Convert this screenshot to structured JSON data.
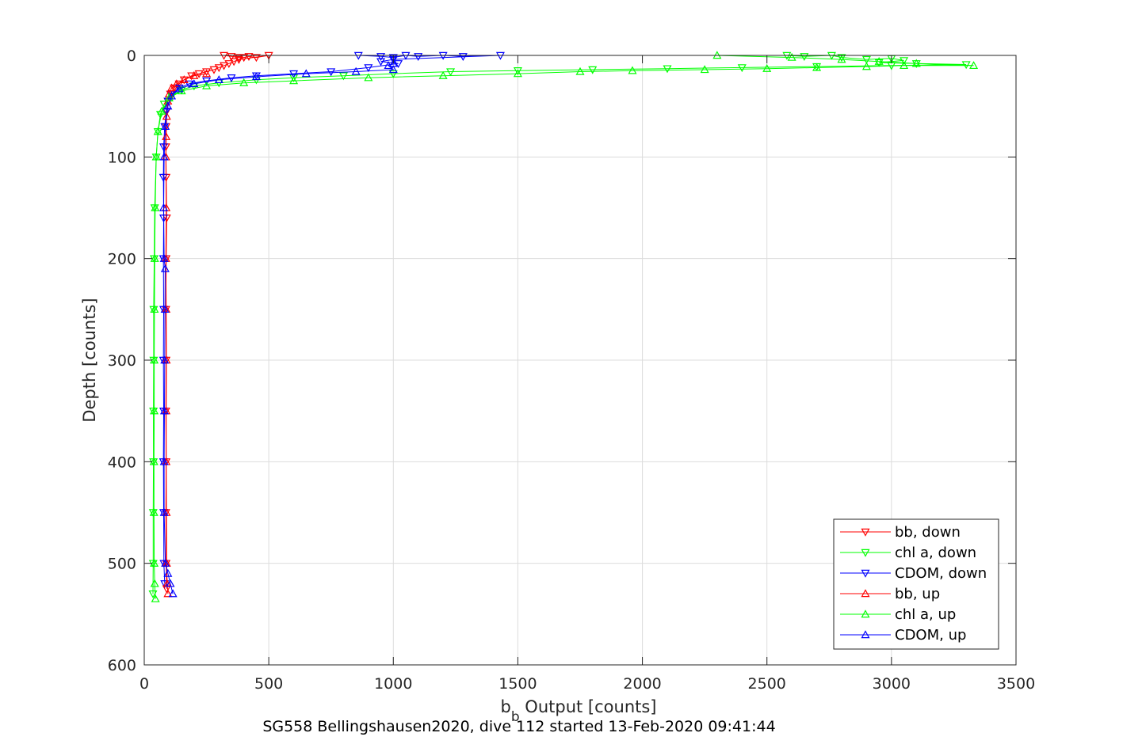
{
  "chart_data": {
    "type": "line",
    "xlabel_main": "b",
    "xlabel_sub": "b",
    "xlabel_rest": " Output [counts]",
    "ylabel": "Depth [counts]",
    "subtitle": "SG558 Bellingshausen2020, dive 112 started 13-Feb-2020 09:41:44",
    "xlim": [
      0,
      3500
    ],
    "ylim": [
      0,
      600
    ],
    "y_reversed": true,
    "xticks": [
      0,
      500,
      1000,
      1500,
      2000,
      2500,
      3000,
      3500
    ],
    "yticks": [
      0,
      100,
      200,
      300,
      400,
      500,
      600
    ],
    "grid": true,
    "legend_position": "bottom-right",
    "series": [
      {
        "name": "bb, down",
        "color": "#ff0000",
        "marker": "triangle-down",
        "points": [
          [
            320,
            0
          ],
          [
            350,
            1
          ],
          [
            380,
            2
          ],
          [
            400,
            2
          ],
          [
            420,
            1
          ],
          [
            450,
            2
          ],
          [
            500,
            0
          ],
          [
            380,
            4
          ],
          [
            360,
            6
          ],
          [
            340,
            8
          ],
          [
            320,
            10
          ],
          [
            300,
            12
          ],
          [
            280,
            14
          ],
          [
            250,
            16
          ],
          [
            220,
            18
          ],
          [
            190,
            20
          ],
          [
            160,
            24
          ],
          [
            140,
            28
          ],
          [
            120,
            32
          ],
          [
            105,
            38
          ],
          [
            95,
            45
          ],
          [
            90,
            55
          ],
          [
            88,
            70
          ],
          [
            87,
            90
          ],
          [
            88,
            120
          ],
          [
            90,
            160
          ],
          [
            88,
            200
          ],
          [
            87,
            250
          ],
          [
            88,
            300
          ],
          [
            87,
            350
          ],
          [
            88,
            400
          ],
          [
            87,
            450
          ],
          [
            88,
            500
          ],
          [
            90,
            525
          ]
        ]
      },
      {
        "name": "chl a, down",
        "color": "#00ff00",
        "marker": "triangle-down",
        "points": [
          [
            2580,
            0
          ],
          [
            2650,
            1
          ],
          [
            2760,
            0
          ],
          [
            2800,
            2
          ],
          [
            2900,
            4
          ],
          [
            3000,
            3
          ],
          [
            3050,
            5
          ],
          [
            2950,
            7
          ],
          [
            3100,
            8
          ],
          [
            3300,
            9
          ],
          [
            3000,
            10
          ],
          [
            2700,
            11
          ],
          [
            2400,
            12
          ],
          [
            2100,
            13
          ],
          [
            1800,
            14
          ],
          [
            1500,
            15
          ],
          [
            1230,
            16
          ],
          [
            1000,
            18
          ],
          [
            800,
            20
          ],
          [
            600,
            22
          ],
          [
            450,
            24
          ],
          [
            300,
            27
          ],
          [
            200,
            30
          ],
          [
            150,
            34
          ],
          [
            110,
            40
          ],
          [
            80,
            48
          ],
          [
            65,
            58
          ],
          [
            55,
            75
          ],
          [
            48,
            100
          ],
          [
            42,
            150
          ],
          [
            40,
            200
          ],
          [
            38,
            250
          ],
          [
            38,
            300
          ],
          [
            37,
            350
          ],
          [
            37,
            400
          ],
          [
            36,
            450
          ],
          [
            36,
            500
          ],
          [
            35,
            530
          ]
        ]
      },
      {
        "name": "CDOM, down",
        "color": "#0000ff",
        "marker": "triangle-down",
        "points": [
          [
            860,
            0
          ],
          [
            950,
            1
          ],
          [
            1000,
            2
          ],
          [
            1050,
            0
          ],
          [
            1100,
            1
          ],
          [
            1200,
            0
          ],
          [
            1280,
            1
          ],
          [
            1430,
            0
          ],
          [
            1000,
            4
          ],
          [
            950,
            6
          ],
          [
            1020,
            8
          ],
          [
            900,
            12
          ],
          [
            750,
            16
          ],
          [
            600,
            18
          ],
          [
            450,
            20
          ],
          [
            350,
            22
          ],
          [
            250,
            25
          ],
          [
            180,
            28
          ],
          [
            140,
            32
          ],
          [
            110,
            38
          ],
          [
            95,
            45
          ],
          [
            88,
            55
          ],
          [
            82,
            70
          ],
          [
            78,
            90
          ],
          [
            77,
            120
          ],
          [
            78,
            160
          ],
          [
            77,
            200
          ],
          [
            78,
            250
          ],
          [
            77,
            300
          ],
          [
            78,
            350
          ],
          [
            77,
            400
          ],
          [
            78,
            450
          ],
          [
            79,
            500
          ],
          [
            82,
            520
          ]
        ]
      },
      {
        "name": "bb, up",
        "color": "#ff0000",
        "marker": "triangle-up",
        "points": [
          [
            95,
            530
          ],
          [
            92,
            520
          ],
          [
            90,
            500
          ],
          [
            89,
            450
          ],
          [
            88,
            400
          ],
          [
            88,
            350
          ],
          [
            89,
            300
          ],
          [
            88,
            250
          ],
          [
            87,
            200
          ],
          [
            88,
            150
          ],
          [
            87,
            100
          ],
          [
            88,
            80
          ],
          [
            90,
            60
          ],
          [
            95,
            45
          ],
          [
            100,
            38
          ],
          [
            110,
            32
          ],
          [
            130,
            28
          ],
          [
            160,
            24
          ],
          [
            200,
            20
          ],
          [
            250,
            18
          ]
        ]
      },
      {
        "name": "chl a, up",
        "color": "#00ff00",
        "marker": "triangle-up",
        "points": [
          [
            45,
            535
          ],
          [
            42,
            520
          ],
          [
            40,
            500
          ],
          [
            39,
            450
          ],
          [
            39,
            400
          ],
          [
            40,
            350
          ],
          [
            40,
            300
          ],
          [
            41,
            250
          ],
          [
            42,
            200
          ],
          [
            44,
            150
          ],
          [
            48,
            100
          ],
          [
            55,
            75
          ],
          [
            70,
            55
          ],
          [
            100,
            42
          ],
          [
            150,
            35
          ],
          [
            250,
            30
          ],
          [
            400,
            27
          ],
          [
            600,
            25
          ],
          [
            900,
            22
          ],
          [
            1200,
            20
          ],
          [
            1500,
            18
          ],
          [
            1750,
            16
          ],
          [
            1960,
            15
          ],
          [
            2250,
            14
          ],
          [
            2500,
            13
          ],
          [
            2700,
            12
          ],
          [
            2900,
            11
          ],
          [
            3050,
            10
          ],
          [
            3330,
            10
          ],
          [
            3100,
            8
          ],
          [
            2950,
            6
          ],
          [
            2800,
            4
          ],
          [
            2600,
            2
          ],
          [
            2300,
            0
          ]
        ]
      },
      {
        "name": "CDOM, up",
        "color": "#0000ff",
        "marker": "triangle-up",
        "points": [
          [
            115,
            530
          ],
          [
            105,
            520
          ],
          [
            95,
            510
          ],
          [
            85,
            500
          ],
          [
            80,
            450
          ],
          [
            80,
            400
          ],
          [
            81,
            350
          ],
          [
            82,
            300
          ],
          [
            83,
            250
          ],
          [
            84,
            210
          ],
          [
            80,
            200
          ],
          [
            78,
            150
          ],
          [
            80,
            100
          ],
          [
            85,
            70
          ],
          [
            95,
            50
          ],
          [
            110,
            40
          ],
          [
            140,
            33
          ],
          [
            200,
            28
          ],
          [
            300,
            24
          ],
          [
            450,
            21
          ],
          [
            650,
            18
          ],
          [
            850,
            16
          ],
          [
            1000,
            14
          ],
          [
            980,
            10
          ],
          [
            1000,
            8
          ]
        ]
      }
    ]
  }
}
